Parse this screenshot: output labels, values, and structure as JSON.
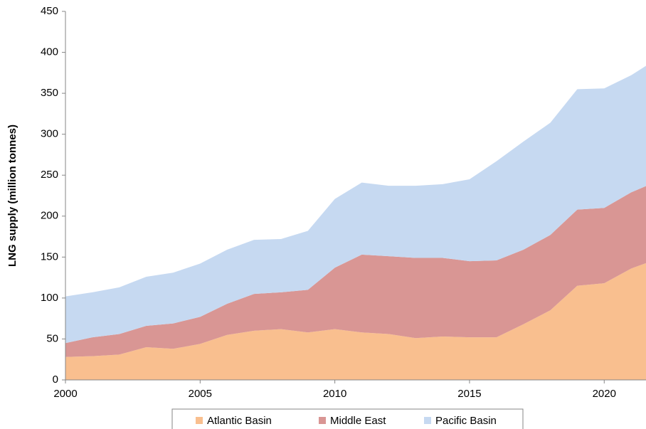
{
  "chart_data": {
    "type": "stacked_area",
    "y_label": "LNG supply (million tonnes)",
    "x": [
      2000,
      2001,
      2002,
      2003,
      2004,
      2005,
      2006,
      2007,
      2008,
      2009,
      2010,
      2011,
      2012,
      2013,
      2014,
      2015,
      2016,
      2017,
      2018,
      2019,
      2020,
      2021,
      2022
    ],
    "series": [
      {
        "name": "Atlantic Basin",
        "color": "#f9bf8f",
        "values": [
          28,
          29,
          31,
          40,
          38,
          44,
          55,
          60,
          62,
          58,
          62,
          58,
          56,
          51,
          53,
          52,
          52,
          68,
          85,
          115,
          118,
          136,
          148
        ]
      },
      {
        "name": "Middle East",
        "color": "#d99694",
        "values": [
          17,
          23,
          25,
          26,
          31,
          33,
          38,
          45,
          45,
          52,
          75,
          95,
          95,
          98,
          96,
          93,
          94,
          91,
          92,
          93,
          92,
          93,
          95
        ]
      },
      {
        "name": "Pacific Basin",
        "color": "#c6d9f1",
        "values": [
          57,
          55,
          57,
          60,
          62,
          65,
          66,
          66,
          65,
          72,
          84,
          88,
          86,
          88,
          90,
          100,
          121,
          132,
          137,
          147,
          146,
          143,
          150
        ]
      }
    ],
    "xlim": [
      2000,
      2022
    ],
    "xticks": [
      2000,
      2005,
      2010,
      2015,
      2020
    ],
    "ylim": [
      0,
      450
    ],
    "yticks": [
      0,
      50,
      100,
      150,
      200,
      250,
      300,
      350,
      400,
      450
    ],
    "legend": "bottom"
  }
}
